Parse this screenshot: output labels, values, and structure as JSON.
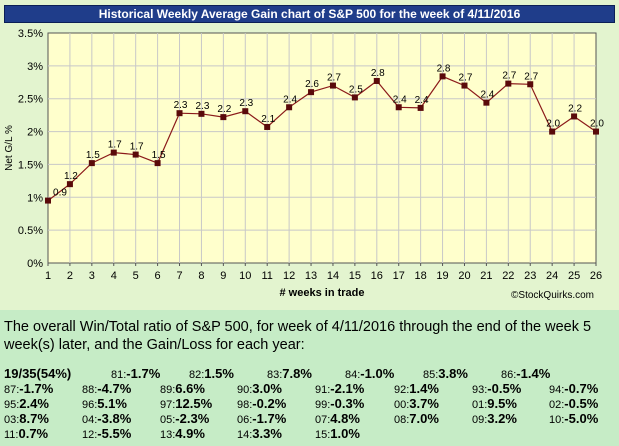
{
  "chart_data": {
    "type": "line",
    "title": "Historical Weekly Average Gain chart of S&P 500 for the week of 4/11/2016",
    "xlabel": "# weeks in trade",
    "ylabel": "Net G/L %",
    "x": [
      1,
      2,
      3,
      4,
      5,
      6,
      7,
      8,
      9,
      10,
      11,
      12,
      13,
      14,
      15,
      16,
      17,
      18,
      19,
      20,
      21,
      22,
      23,
      24,
      25,
      26
    ],
    "values": [
      0.95,
      1.2,
      1.52,
      1.68,
      1.65,
      1.52,
      2.28,
      2.27,
      2.22,
      2.31,
      2.07,
      2.37,
      2.6,
      2.7,
      2.52,
      2.77,
      2.37,
      2.36,
      2.84,
      2.7,
      2.44,
      2.73,
      2.72,
      2.0,
      2.23,
      2.0
    ],
    "data_labels": [
      "0.9",
      "1.2",
      "1.5",
      "1.7",
      "1.7",
      "1.5",
      "2.3",
      "2.3",
      "2.2",
      "2.3",
      "2.1",
      "2.4",
      "2.6",
      "2.7",
      "2.5",
      "2.8",
      "2.4",
      "2.4",
      "2.8",
      "2.7",
      "2.4",
      "2.7",
      "2.7",
      "2.0",
      "2.2",
      "2.0"
    ],
    "ylim": [
      0,
      3.5
    ],
    "yticks": [
      "0%",
      "0.5%",
      "1%",
      "1.5%",
      "2%",
      "2.5%",
      "3%",
      "3.5%"
    ],
    "grid": true,
    "line_color": "#8b1a1a",
    "marker_color": "#5a0a0a",
    "plot_bg": "#ffffcc",
    "watermark": "©StockQuirks.com"
  },
  "summary": "The overall Win/Total ratio of S&P 500, for week of 4/11/2016 through the end of the week 5 week(s) later, and the Gain/Loss for each year:",
  "ratio": "19/35(54%)",
  "years": [
    [
      {
        "y": "81:",
        "v": "-1.7%"
      },
      {
        "y": "82:",
        "v": "1.5%"
      },
      {
        "y": "83:",
        "v": "7.8%"
      },
      {
        "y": "84:",
        "v": "-1.0%"
      },
      {
        "y": "85:",
        "v": "3.8%"
      },
      {
        "y": "86:",
        "v": "-1.4%"
      }
    ],
    [
      {
        "y": "87:",
        "v": "-1.7%"
      },
      {
        "y": "88:",
        "v": "-4.7%"
      },
      {
        "y": "89:",
        "v": "6.6%"
      },
      {
        "y": "90:",
        "v": "3.0%"
      },
      {
        "y": "91:",
        "v": "-2.1%"
      },
      {
        "y": "92:",
        "v": "1.4%"
      },
      {
        "y": "93:",
        "v": "-0.5%"
      },
      {
        "y": "94:",
        "v": "-0.7%"
      }
    ],
    [
      {
        "y": "95:",
        "v": "2.4%"
      },
      {
        "y": "96:",
        "v": "5.1%"
      },
      {
        "y": "97:",
        "v": "12.5%"
      },
      {
        "y": "98:",
        "v": "-0.2%"
      },
      {
        "y": "99:",
        "v": "-0.3%"
      },
      {
        "y": "00:",
        "v": "3.7%"
      },
      {
        "y": "01:",
        "v": "9.5%"
      },
      {
        "y": "02:",
        "v": "-0.5%"
      }
    ],
    [
      {
        "y": "03:",
        "v": "8.7%"
      },
      {
        "y": "04:",
        "v": "-3.8%"
      },
      {
        "y": "05:",
        "v": "-2.3%"
      },
      {
        "y": "06:",
        "v": "-1.7%"
      },
      {
        "y": "07:",
        "v": "4.8%"
      },
      {
        "y": "08:",
        "v": "7.0%"
      },
      {
        "y": "09:",
        "v": "3.2%"
      },
      {
        "y": "10:",
        "v": "-5.0%"
      }
    ],
    [
      {
        "y": "11:",
        "v": "0.7%"
      },
      {
        "y": "12:",
        "v": "-5.5%"
      },
      {
        "y": "13:",
        "v": "4.9%"
      },
      {
        "y": "14:",
        "v": "3.3%"
      },
      {
        "y": "15:",
        "v": "1.0%"
      }
    ]
  ]
}
